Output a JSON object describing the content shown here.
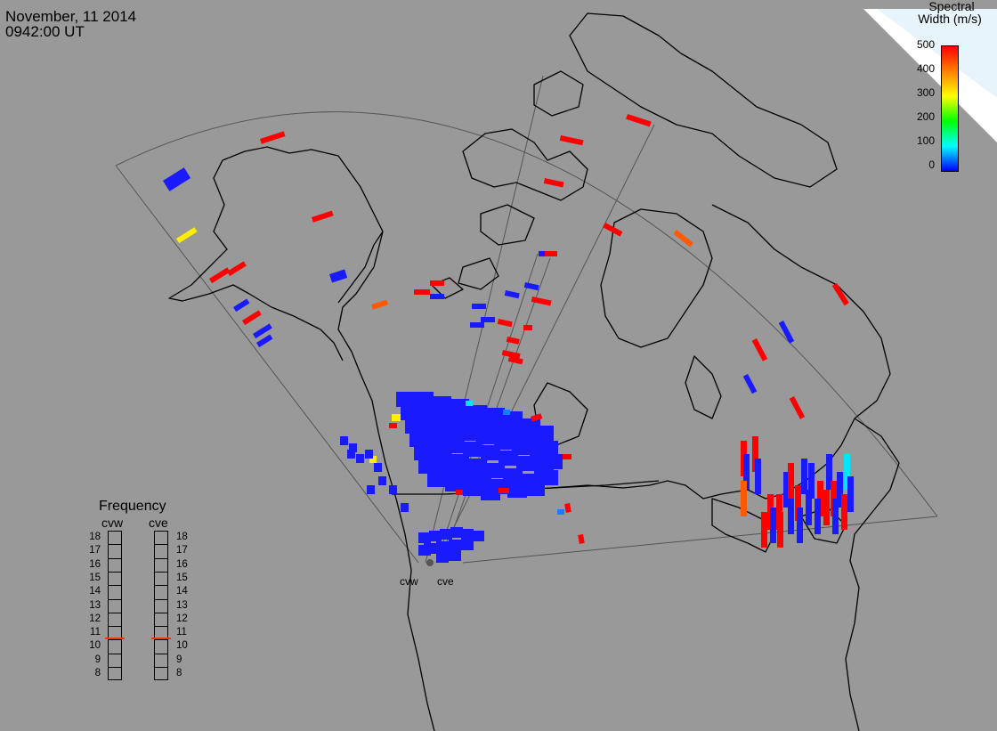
{
  "header": {
    "date": "November, 11 2014",
    "time": "0942:00 UT"
  },
  "colorbar": {
    "title_line1": "Spectral",
    "title_line2": "Width (m/s)",
    "ticks": [
      "500",
      "400",
      "300",
      "200",
      "100",
      "0"
    ],
    "gradient_colors": [
      "#ff0000",
      "#ff7f00",
      "#ffff00",
      "#00ff00",
      "#00ffff",
      "#0000ff"
    ]
  },
  "frequency_panel": {
    "title": "Frequency",
    "radars": [
      {
        "name": "cvw",
        "selected_mhz": 11
      },
      {
        "name": "cve",
        "selected_mhz": 11
      }
    ],
    "levels": [
      "18",
      "17",
      "16",
      "15",
      "14",
      "13",
      "12",
      "11",
      "10",
      "9",
      "8"
    ]
  },
  "radar_sites": [
    "cvw",
    "cve"
  ],
  "colors": {
    "background": "#999999",
    "coastline": "#000000",
    "fov_line": "#555555",
    "frequency_marker": "#ff3300",
    "width_0": "#1a1aff",
    "width_500": "#ff0000"
  }
}
